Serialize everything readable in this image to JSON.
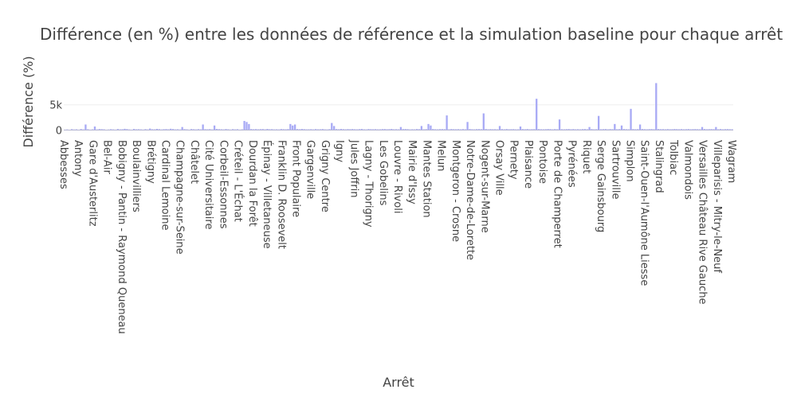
{
  "chart_data": {
    "type": "bar",
    "title": "Différence (en %) entre les données de référence et la simulation baseline pour chaque arrêt",
    "xlabel": "Arrêt",
    "ylabel": "Différence (%)",
    "ylim": [
      -400,
      10000
    ],
    "yticks": [
      0,
      5000
    ],
    "ytick_labels": [
      "0",
      "5k"
    ],
    "grid": true,
    "bar_color": "#a8aaf5",
    "tick_labels": [
      "Abbesses",
      "Antony",
      "Gare d'Austerlitz",
      "Bel-Air",
      "Bobigny - Pantin - Raymond Queneau",
      "Boulainvilliers",
      "Brétigny",
      "Cardinal Lemoine",
      "Champagne-sur-Seine",
      "Châtelet",
      "Cité Universitaire",
      "Corbeil-Essonnes",
      "Créteil - L'Échat",
      "Dourdan la Forêt",
      "Épinay - Villetaneuse",
      "Franklin D. Roosevelt",
      "Front Populaire",
      "Gargenville",
      "Grigny Centre",
      "Igny",
      "Jules Joffrin",
      "Lagny - Thorigny",
      "Les Gobelins",
      "Louvre - Rivoli",
      "Mairie d'Issy",
      "Mantes Station",
      "Melun",
      "Montgeron - Crosne",
      "Notre-Dame-de-Lorette",
      "Nogent-sur-Marne",
      "Orsay Ville",
      "Pernety",
      "Plaisance",
      "Pontoise",
      "Porte de Champerret",
      "Pyrénées",
      "Riquet",
      "Serge Gainsbourg",
      "Sartrouville",
      "Simplon",
      "Saint-Ouen-l'Aumône Liesse",
      "Stalingrad",
      "Tolbiac",
      "Valmondois",
      "Versailles Château Rive Gauche",
      "Villeparisis - Mitry-le-Neuf",
      "Wagram"
    ],
    "values": [
      90,
      120,
      60,
      180,
      110,
      150,
      80,
      200,
      130,
      1100,
      160,
      90,
      140,
      700,
      120,
      200,
      180,
      150,
      60,
      110,
      170,
      130,
      90,
      210,
      140,
      160,
      250,
      190,
      120,
      80,
      220,
      150,
      170,
      140,
      100,
      180,
      120,
      300,
      160,
      140,
      230,
      180,
      120,
      170,
      190,
      150,
      260,
      200,
      130,
      160,
      110,
      600,
      180,
      140,
      90,
      200,
      160,
      120,
      180,
      140,
      1100,
      170,
      150,
      180,
      120,
      900,
      220,
      180,
      160,
      130,
      200,
      150,
      100,
      180,
      130,
      170,
      90,
      140,
      1800,
      1600,
      1200,
      200,
      160,
      190,
      150,
      180,
      200,
      140,
      220,
      160,
      180,
      130,
      150,
      120,
      200,
      170,
      150,
      190,
      1200,
      900,
      1100,
      200,
      160,
      220,
      180,
      140,
      150,
      170,
      130,
      190,
      150,
      160,
      200,
      140,
      120,
      180,
      1400,
      800,
      200,
      160,
      220,
      180,
      150,
      190,
      170,
      200,
      160,
      140,
      180,
      220,
      150,
      130,
      200,
      170,
      160,
      180,
      140,
      150,
      190,
      200,
      160,
      180,
      220,
      150,
      170,
      140,
      600,
      190,
      200,
      180,
      130,
      160,
      140,
      200,
      170,
      800,
      150,
      180,
      1200,
      900,
      200,
      160,
      140,
      180,
      190,
      170,
      2900,
      150,
      200,
      170,
      160,
      180,
      140,
      190,
      150,
      1600,
      200,
      160,
      140,
      180,
      190,
      170,
      3300,
      200,
      150,
      180,
      160,
      170,
      140,
      800,
      190,
      150,
      200,
      160,
      170,
      180,
      140,
      150,
      700,
      190,
      160,
      200,
      150,
      170,
      180,
      6200,
      190,
      160,
      150,
      170,
      200,
      180,
      140,
      190,
      160,
      2100,
      170,
      150,
      180,
      200,
      160,
      190,
      150,
      170,
      140,
      180,
      200,
      160,
      600,
      190,
      150,
      170,
      2800,
      160,
      180,
      200,
      150,
      190,
      170,
      1200,
      160,
      180,
      900,
      200,
      170,
      150,
      4200,
      190,
      160,
      180,
      1100,
      200,
      170,
      150,
      180,
      190,
      160,
      9300,
      200,
      170,
      180,
      150,
      190,
      160,
      170,
      200,
      180,
      160,
      190,
      150,
      170,
      200,
      160,
      180,
      190,
      170,
      150,
      600,
      200,
      160,
      180,
      190,
      170,
      600,
      160,
      200,
      150,
      180,
      190,
      170,
      160
    ]
  }
}
